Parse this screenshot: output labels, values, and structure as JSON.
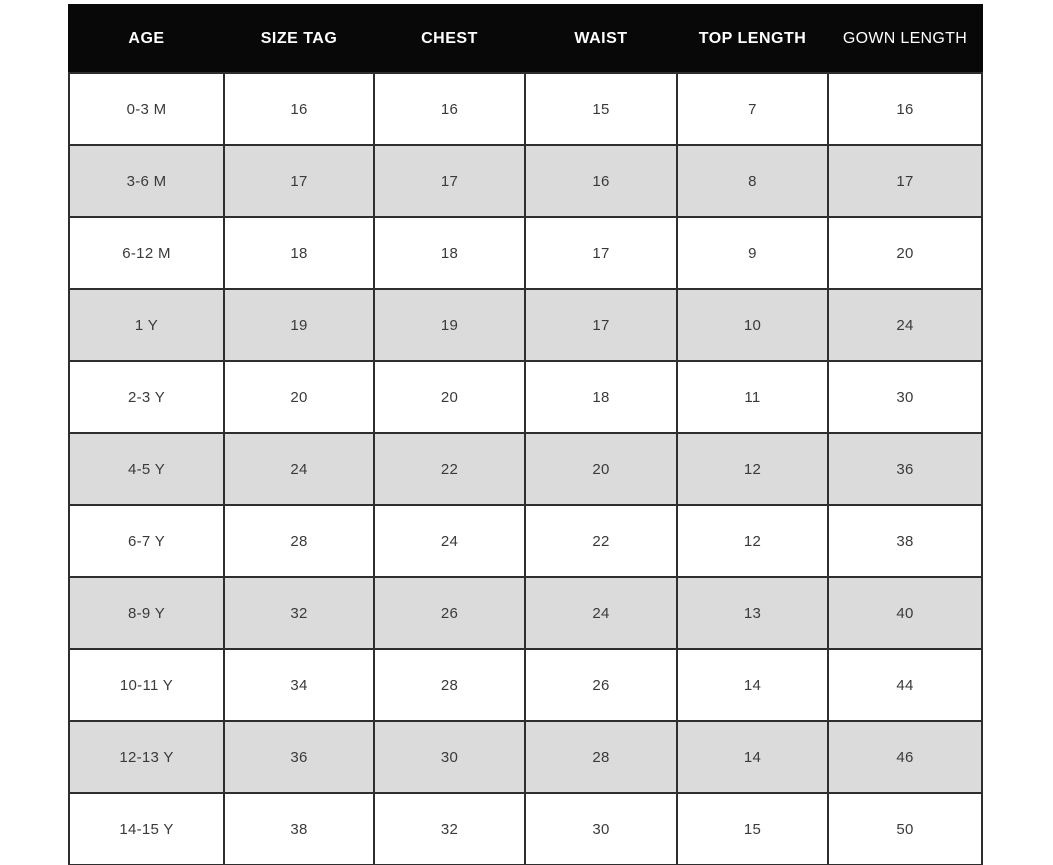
{
  "chart_data": {
    "type": "table",
    "columns": [
      "AGE",
      "SIZE TAG",
      "CHEST",
      "WAIST",
      "TOP LENGTH",
      "GOWN LENGTH"
    ],
    "rows": [
      [
        "0-3 M",
        "16",
        "16",
        "15",
        "7",
        "16"
      ],
      [
        "3-6 M",
        "17",
        "17",
        "16",
        "8",
        "17"
      ],
      [
        "6-12 M",
        "18",
        "18",
        "17",
        "9",
        "20"
      ],
      [
        "1 Y",
        "19",
        "19",
        "17",
        "10",
        "24"
      ],
      [
        "2-3 Y",
        "20",
        "20",
        "18",
        "11",
        "30"
      ],
      [
        "4-5 Y",
        "24",
        "22",
        "20",
        "12",
        "36"
      ],
      [
        "6-7 Y",
        "28",
        "24",
        "22",
        "12",
        "38"
      ],
      [
        "8-9 Y",
        "32",
        "26",
        "24",
        "13",
        "40"
      ],
      [
        "10-11 Y",
        "34",
        "28",
        "26",
        "14",
        "44"
      ],
      [
        "12-13 Y",
        "36",
        "30",
        "28",
        "14",
        "46"
      ],
      [
        "14-15 Y",
        "38",
        "32",
        "30",
        "15",
        "50"
      ]
    ],
    "title": "",
    "layout_hints": {
      "striped": true,
      "stripe_pattern": "odd rows white, even rows gray",
      "header_style": "black background, white uppercase text, last header cell lighter weight"
    }
  },
  "colors": {
    "header_bg": "#080808",
    "header_text": "#ffffff",
    "row_bg": "#ffffff",
    "row_alt_bg": "#dbdbdb",
    "border": "#2e2e2e",
    "cell_text": "#3a3a3a",
    "page_bg": "#ffffff"
  }
}
